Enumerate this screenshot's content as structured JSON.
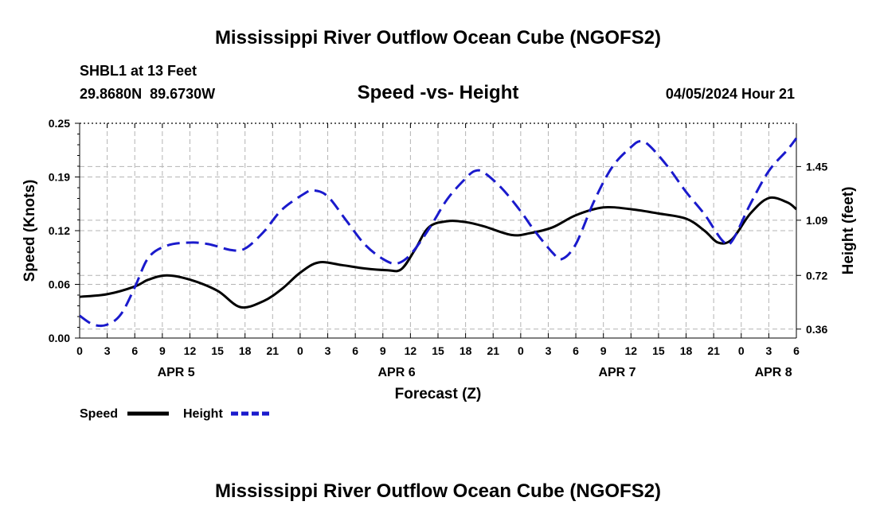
{
  "page_title": "Mississippi River Outflow Ocean Cube (NGOFS2)",
  "footer_title": "Mississippi River Outflow Ocean Cube (NGOFS2)",
  "station": {
    "name_line": "SHBL1 at 13 Feet",
    "coords_line": "29.8680N  89.6730W"
  },
  "timestamp": "04/05/2024 Hour 21",
  "colors": {
    "speed": "#000000",
    "height": "#1a1acc"
  },
  "chart_data": {
    "type": "line",
    "title": "Speed -vs- Height",
    "xlabel": "Forecast (Z)",
    "ylabel": "Speed (Knots)",
    "y2label": "Height (feet)",
    "x_range": [
      0,
      78
    ],
    "ylim": [
      0.0,
      0.25
    ],
    "y2lim": [
      0.3,
      1.74
    ],
    "y_ticks": [
      {
        "value": 0.0,
        "label": "0.00"
      },
      {
        "value": 0.0625,
        "label": "0.06"
      },
      {
        "value": 0.125,
        "label": "0.12"
      },
      {
        "value": 0.1875,
        "label": "0.19"
      },
      {
        "value": 0.25,
        "label": "0.25"
      }
    ],
    "y2_ticks": [
      {
        "value": 0.36,
        "label": "0.36"
      },
      {
        "value": 0.72,
        "label": "0.72"
      },
      {
        "value": 1.09,
        "label": "1.09"
      },
      {
        "value": 1.45,
        "label": "1.45"
      }
    ],
    "x_ticks": [
      {
        "hour": 0,
        "label": "0"
      },
      {
        "hour": 3,
        "label": "3"
      },
      {
        "hour": 6,
        "label": "6"
      },
      {
        "hour": 9,
        "label": "9"
      },
      {
        "hour": 12,
        "label": "12"
      },
      {
        "hour": 15,
        "label": "15"
      },
      {
        "hour": 18,
        "label": "18"
      },
      {
        "hour": 21,
        "label": "21"
      },
      {
        "hour": 24,
        "label": "0"
      },
      {
        "hour": 27,
        "label": "3"
      },
      {
        "hour": 30,
        "label": "6"
      },
      {
        "hour": 33,
        "label": "9"
      },
      {
        "hour": 36,
        "label": "12"
      },
      {
        "hour": 39,
        "label": "15"
      },
      {
        "hour": 42,
        "label": "18"
      },
      {
        "hour": 45,
        "label": "21"
      },
      {
        "hour": 48,
        "label": "0"
      },
      {
        "hour": 51,
        "label": "3"
      },
      {
        "hour": 54,
        "label": "6"
      },
      {
        "hour": 57,
        "label": "9"
      },
      {
        "hour": 60,
        "label": "12"
      },
      {
        "hour": 63,
        "label": "15"
      },
      {
        "hour": 66,
        "label": "18"
      },
      {
        "hour": 69,
        "label": "21"
      },
      {
        "hour": 72,
        "label": "0"
      },
      {
        "hour": 75,
        "label": "3"
      },
      {
        "hour": 78,
        "label": "6"
      }
    ],
    "day_labels": [
      {
        "hour": 10.5,
        "label": "APR 5"
      },
      {
        "hour": 34.5,
        "label": "APR 6"
      },
      {
        "hour": 58.5,
        "label": "APR 7"
      },
      {
        "hour": 75.5,
        "label": "APR 8"
      }
    ],
    "series": [
      {
        "name": "Speed",
        "axis": "left",
        "style": "solid",
        "points": [
          [
            0,
            0.048
          ],
          [
            3,
            0.051
          ],
          [
            6,
            0.06
          ],
          [
            7.5,
            0.068
          ],
          [
            9.5,
            0.073
          ],
          [
            12,
            0.068
          ],
          [
            15,
            0.055
          ],
          [
            17.5,
            0.036
          ],
          [
            20,
            0.043
          ],
          [
            22,
            0.057
          ],
          [
            24,
            0.076
          ],
          [
            26,
            0.088
          ],
          [
            28.5,
            0.085
          ],
          [
            31,
            0.081
          ],
          [
            33.5,
            0.079
          ],
          [
            35,
            0.08
          ],
          [
            36.5,
            0.103
          ],
          [
            38,
            0.129
          ],
          [
            40,
            0.136
          ],
          [
            42,
            0.135
          ],
          [
            44,
            0.13
          ],
          [
            47,
            0.12
          ],
          [
            49,
            0.122
          ],
          [
            51.5,
            0.129
          ],
          [
            54,
            0.143
          ],
          [
            57,
            0.152
          ],
          [
            60,
            0.15
          ],
          [
            63,
            0.145
          ],
          [
            66,
            0.139
          ],
          [
            68,
            0.125
          ],
          [
            69.5,
            0.111
          ],
          [
            71,
            0.115
          ],
          [
            73,
            0.145
          ],
          [
            75,
            0.163
          ],
          [
            77,
            0.158
          ],
          [
            78,
            0.15
          ]
        ]
      },
      {
        "name": "Height",
        "axis": "right",
        "style": "dashed",
        "points": [
          [
            0,
            0.45
          ],
          [
            1.5,
            0.39
          ],
          [
            3,
            0.39
          ],
          [
            4.5,
            0.46
          ],
          [
            6,
            0.64
          ],
          [
            7.5,
            0.84
          ],
          [
            9.5,
            0.92
          ],
          [
            12,
            0.94
          ],
          [
            14,
            0.93
          ],
          [
            16.5,
            0.89
          ],
          [
            18,
            0.9
          ],
          [
            20,
            1.01
          ],
          [
            22,
            1.16
          ],
          [
            24.5,
            1.27
          ],
          [
            25.5,
            1.29
          ],
          [
            27,
            1.25
          ],
          [
            29,
            1.09
          ],
          [
            31,
            0.93
          ],
          [
            33,
            0.83
          ],
          [
            34.5,
            0.8
          ],
          [
            36,
            0.86
          ],
          [
            38,
            1.03
          ],
          [
            40,
            1.23
          ],
          [
            42,
            1.37
          ],
          [
            43,
            1.42
          ],
          [
            44,
            1.41
          ],
          [
            46,
            1.3
          ],
          [
            48,
            1.15
          ],
          [
            49.5,
            1.02
          ],
          [
            51.5,
            0.87
          ],
          [
            52.5,
            0.83
          ],
          [
            54,
            0.93
          ],
          [
            56,
            1.22
          ],
          [
            58,
            1.45
          ],
          [
            60,
            1.58
          ],
          [
            61,
            1.62
          ],
          [
            62,
            1.59
          ],
          [
            64,
            1.45
          ],
          [
            66,
            1.28
          ],
          [
            68,
            1.13
          ],
          [
            70,
            0.95
          ],
          [
            71,
            0.95
          ],
          [
            73,
            1.2
          ],
          [
            75,
            1.42
          ],
          [
            77,
            1.56
          ],
          [
            78,
            1.64
          ]
        ]
      }
    ],
    "legend": [
      {
        "label": "Speed",
        "series": "Speed"
      },
      {
        "label": "Height",
        "series": "Height"
      }
    ]
  }
}
